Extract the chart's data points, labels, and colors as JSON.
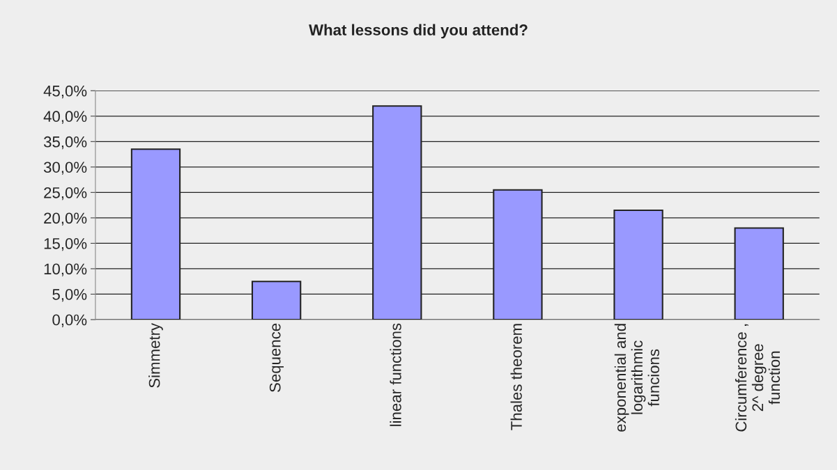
{
  "chart_data": {
    "type": "bar",
    "title": "What lessons did you attend?",
    "categories": [
      "Simmetry",
      "Sequence",
      "linear functions",
      "Thales theorem",
      "exponential and\nlogarithmic\nfuncions",
      "Circumference ,\n2^ degree\nfunction"
    ],
    "values": [
      33.5,
      7.5,
      42.0,
      25.5,
      21.5,
      18.0
    ],
    "color": "#9999ff",
    "ylim": [
      0,
      45
    ],
    "yticks": [
      {
        "value": 0,
        "label": "0,0%"
      },
      {
        "value": 5,
        "label": "5,0%"
      },
      {
        "value": 10,
        "label": "10,0%"
      },
      {
        "value": 15,
        "label": "15,0%"
      },
      {
        "value": 20,
        "label": "20,0%"
      },
      {
        "value": 25,
        "label": "25,0%"
      },
      {
        "value": 30,
        "label": "30,0%"
      },
      {
        "value": 35,
        "label": "35,0%"
      },
      {
        "value": 40,
        "label": "40,0%"
      },
      {
        "value": 45,
        "label": "45,0%"
      }
    ],
    "grid": "y",
    "legend": false
  }
}
